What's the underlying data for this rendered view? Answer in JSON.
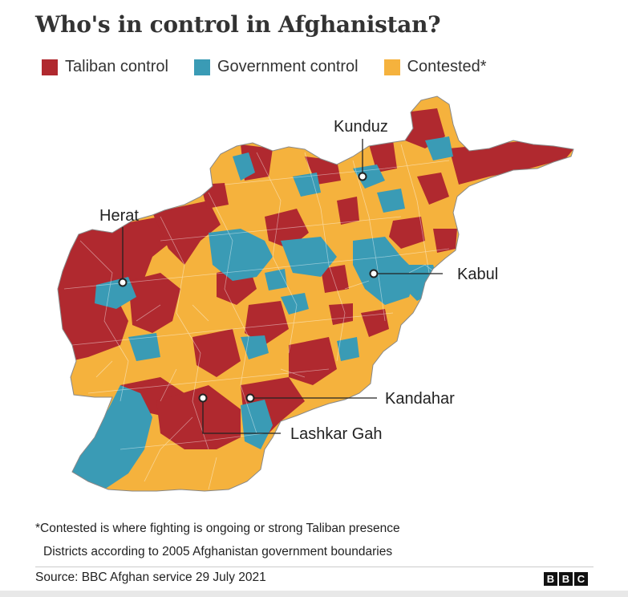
{
  "title": "Who's in control in Afghanistan?",
  "legend": [
    {
      "label": "Taliban control",
      "color": "#b0292f"
    },
    {
      "label": "Government control",
      "color": "#3a9bb5"
    },
    {
      "label": "Contested*",
      "color": "#f5b23d"
    }
  ],
  "cities": {
    "kunduz": "Kunduz",
    "herat": "Herat",
    "kabul": "Kabul",
    "kandahar": "Kandahar",
    "lashkar_gah": "Lashkar Gah"
  },
  "notes": {
    "contested": "*Contested is where fighting is ongoing or strong Taliban presence",
    "districts": "Districts according to 2005 Afghanistan government boundaries"
  },
  "source": "Source: BBC Afghan service 29 July 2021",
  "logo": [
    "B",
    "B",
    "C"
  ]
}
